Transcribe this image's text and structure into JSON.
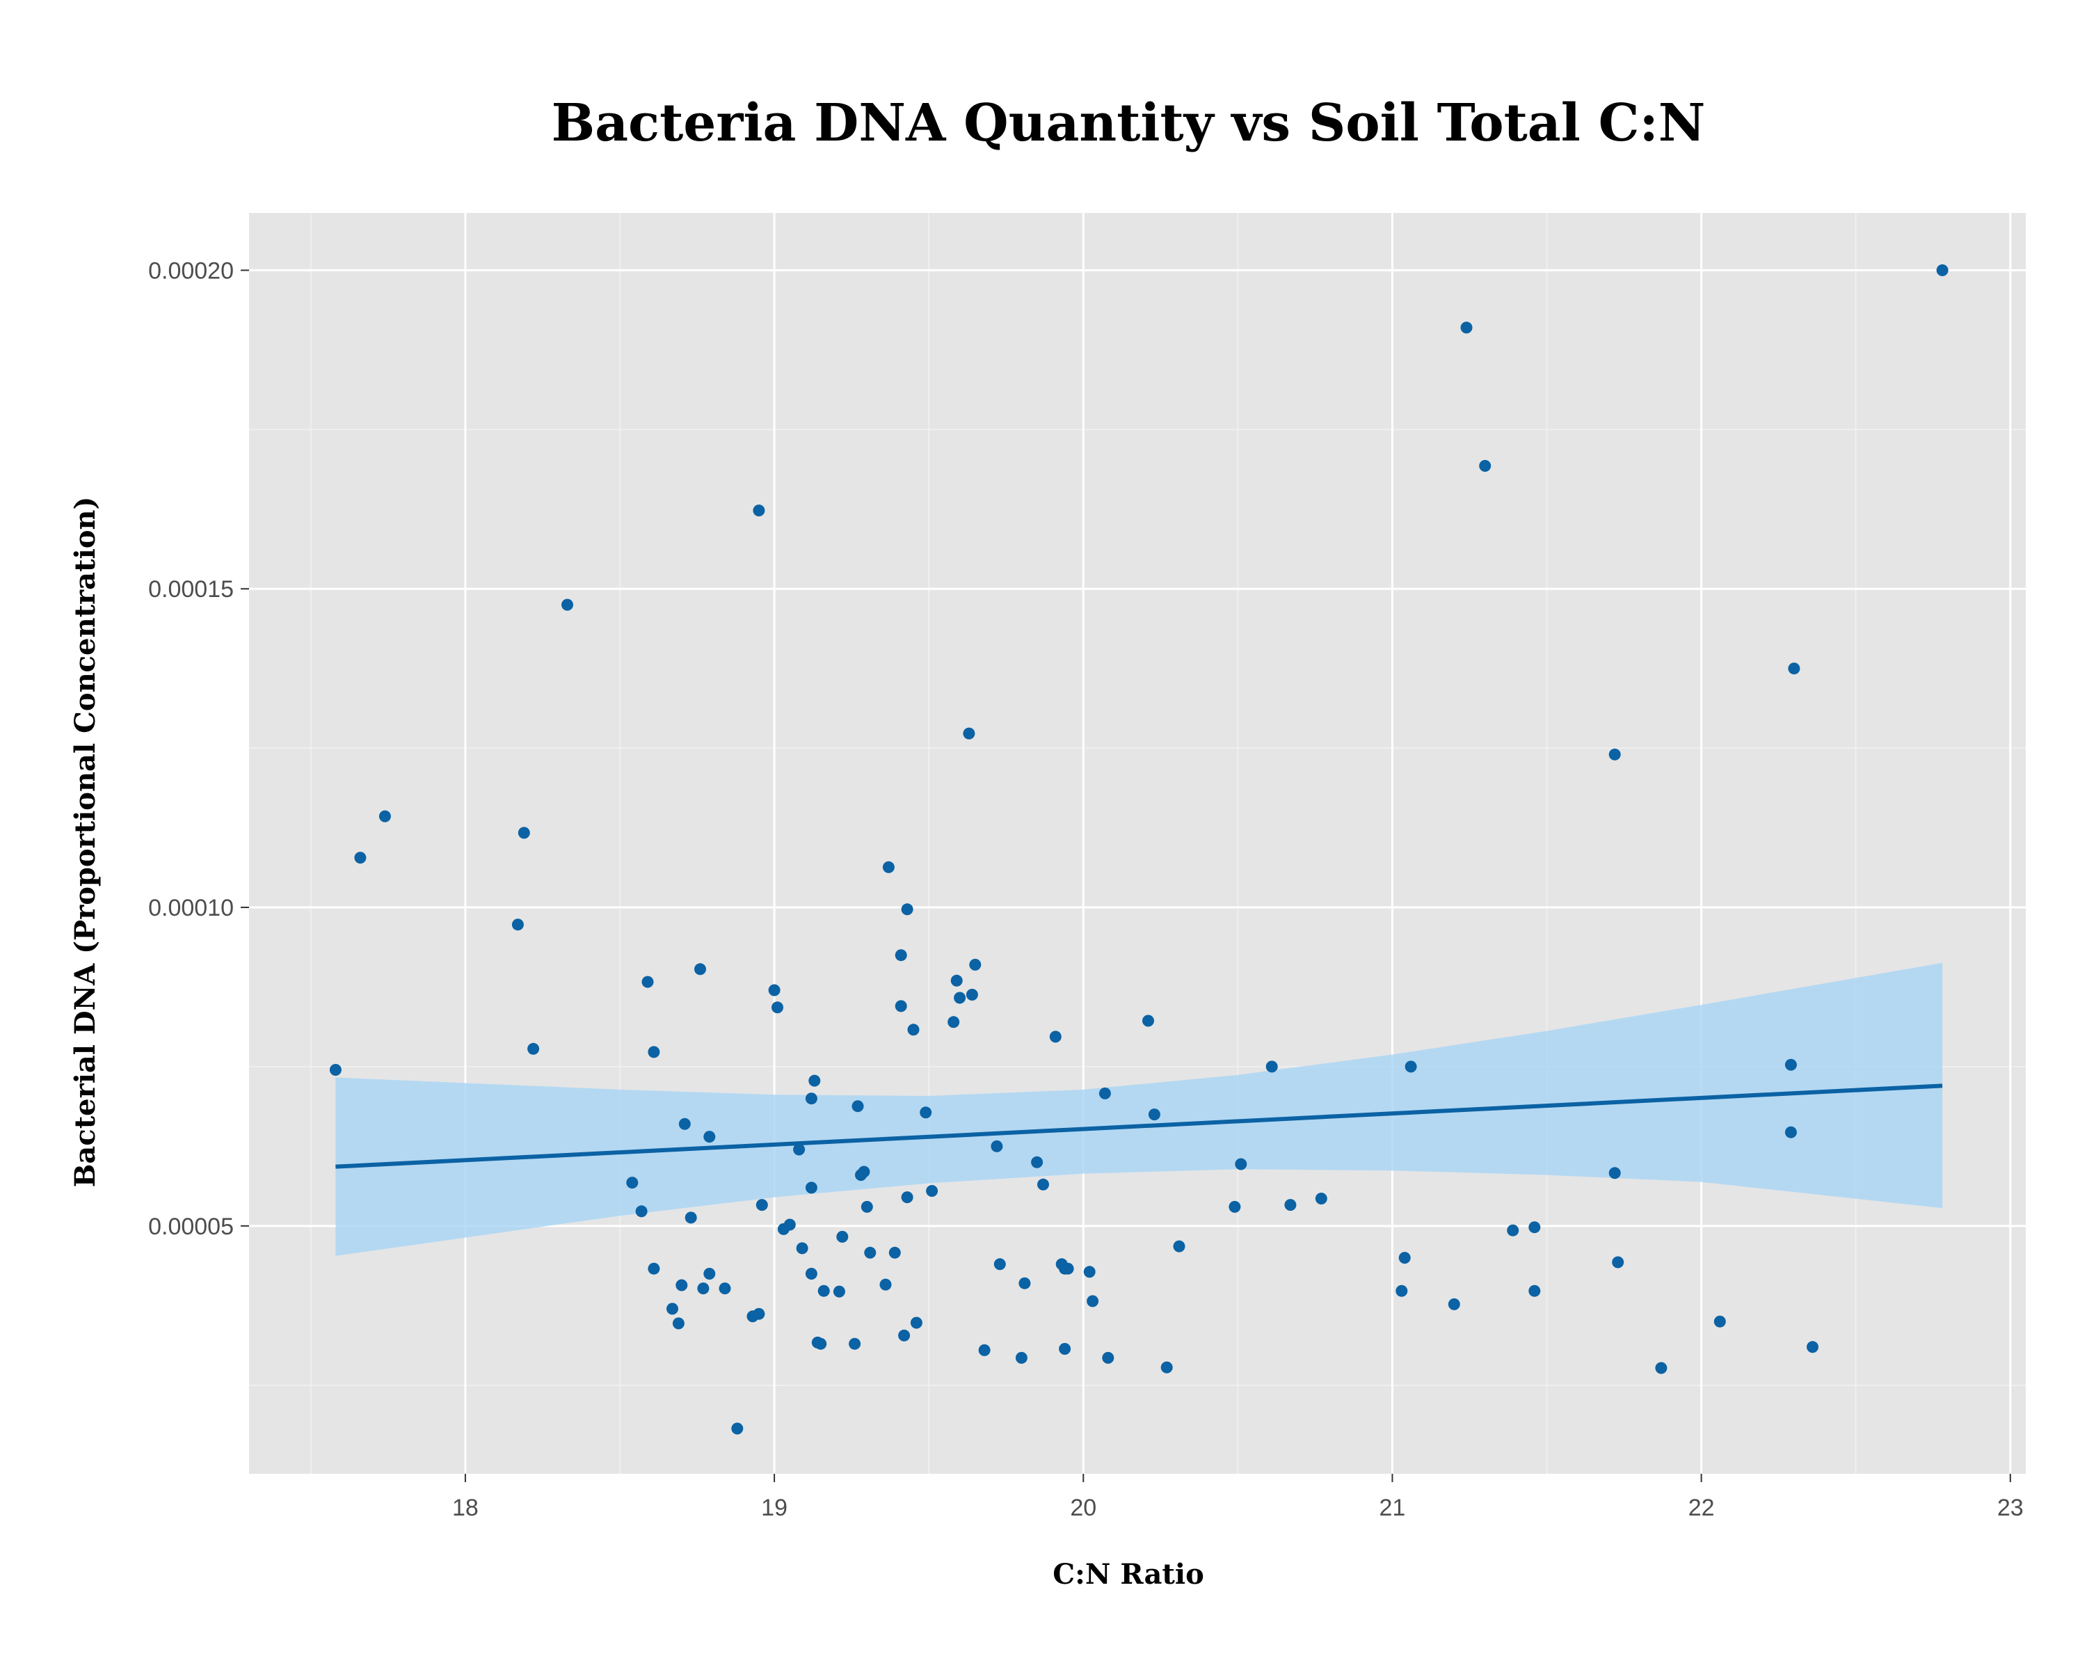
{
  "chart_data": {
    "type": "scatter",
    "title": "Bacteria DNA Quantity vs Soil Total C:N",
    "xlabel": "C:N Ratio",
    "ylabel": "Bacterial DNA (Proportional Concentration)",
    "xlim": [
      17.3,
      23.05
    ],
    "ylim": [
      1.11e-05,
      0.000209
    ],
    "x_ticks": [
      18,
      19,
      20,
      21,
      22,
      23
    ],
    "x_tick_labels": [
      "18",
      "19",
      "20",
      "21",
      "22",
      "23"
    ],
    "y_ticks": [
      5e-05,
      0.0001,
      0.00015,
      0.0002
    ],
    "y_tick_labels": [
      "0.00005",
      "0.00010",
      "0.00015",
      "0.00020"
    ],
    "grid": true,
    "colors": {
      "panel_background": "#e5e5e5",
      "points": "#0b62a4",
      "trend_line": "#0b62a4",
      "confidence_band": "#a8d4f5"
    },
    "points": [
      [
        17.58,
        7.45e-05
      ],
      [
        17.66,
        0.0001078
      ],
      [
        17.74,
        0.0001143
      ],
      [
        18.17,
        9.73e-05
      ],
      [
        18.19,
        0.0001117
      ],
      [
        18.22,
        7.78e-05
      ],
      [
        18.33,
        0.0001475
      ],
      [
        18.54,
        5.68e-05
      ],
      [
        18.57,
        5.23e-05
      ],
      [
        18.59,
        8.83e-05
      ],
      [
        18.61,
        7.73e-05
      ],
      [
        18.61,
        4.33e-05
      ],
      [
        18.67,
        3.7e-05
      ],
      [
        18.69,
        3.47e-05
      ],
      [
        18.7,
        4.07e-05
      ],
      [
        18.71,
        6.6e-05
      ],
      [
        18.73,
        5.13e-05
      ],
      [
        18.76,
        9.03e-05
      ],
      [
        18.77,
        4.02e-05
      ],
      [
        18.79,
        6.4e-05
      ],
      [
        18.79,
        4.25e-05
      ],
      [
        18.84,
        4.02e-05
      ],
      [
        18.88,
        1.82e-05
      ],
      [
        18.93,
        3.58e-05
      ],
      [
        18.95,
        3.62e-05
      ],
      [
        18.95,
        0.0001623
      ],
      [
        18.96,
        5.33e-05
      ],
      [
        19.0,
        8.7e-05
      ],
      [
        19.01,
        8.43e-05
      ],
      [
        19.03,
        4.95e-05
      ],
      [
        19.05,
        5.02e-05
      ],
      [
        19.08,
        6.2e-05
      ],
      [
        19.09,
        4.65e-05
      ],
      [
        19.12,
        7e-05
      ],
      [
        19.12,
        5.6e-05
      ],
      [
        19.12,
        4.25e-05
      ],
      [
        19.13,
        7.28e-05
      ],
      [
        19.14,
        3.17e-05
      ],
      [
        19.15,
        3.15e-05
      ],
      [
        19.16,
        3.98e-05
      ],
      [
        19.21,
        3.97e-05
      ],
      [
        19.22,
        4.83e-05
      ],
      [
        19.26,
        3.15e-05
      ],
      [
        19.27,
        6.88e-05
      ],
      [
        19.28,
        5.8e-05
      ],
      [
        19.29,
        5.85e-05
      ],
      [
        19.3,
        5.3e-05
      ],
      [
        19.31,
        4.58e-05
      ],
      [
        19.36,
        4.08e-05
      ],
      [
        19.37,
        0.0001063
      ],
      [
        19.39,
        4.58e-05
      ],
      [
        19.41,
        9.25e-05
      ],
      [
        19.41,
        8.45e-05
      ],
      [
        19.42,
        3.28e-05
      ],
      [
        19.43,
        9.97e-05
      ],
      [
        19.43,
        5.45e-05
      ],
      [
        19.45,
        8.08e-05
      ],
      [
        19.46,
        3.48e-05
      ],
      [
        19.49,
        6.78e-05
      ],
      [
        19.51,
        5.55e-05
      ],
      [
        19.58,
        8.2e-05
      ],
      [
        19.59,
        8.85e-05
      ],
      [
        19.6,
        8.58e-05
      ],
      [
        19.63,
        0.0001273
      ],
      [
        19.64,
        8.63e-05
      ],
      [
        19.65,
        9.1e-05
      ],
      [
        19.68,
        3.05e-05
      ],
      [
        19.72,
        6.25e-05
      ],
      [
        19.73,
        4.4e-05
      ],
      [
        19.8,
        2.93e-05
      ],
      [
        19.81,
        4.1e-05
      ],
      [
        19.85,
        6e-05
      ],
      [
        19.87,
        5.65e-05
      ],
      [
        19.91,
        7.97e-05
      ],
      [
        19.93,
        4.4e-05
      ],
      [
        19.94,
        4.33e-05
      ],
      [
        19.94,
        3.07e-05
      ],
      [
        19.95,
        4.33e-05
      ],
      [
        20.02,
        4.28e-05
      ],
      [
        20.03,
        3.82e-05
      ],
      [
        20.07,
        7.08e-05
      ],
      [
        20.08,
        2.93e-05
      ],
      [
        20.21,
        8.22e-05
      ],
      [
        20.23,
        6.75e-05
      ],
      [
        20.27,
        2.78e-05
      ],
      [
        20.31,
        4.68e-05
      ],
      [
        20.49,
        5.3e-05
      ],
      [
        20.51,
        5.97e-05
      ],
      [
        20.61,
        7.5e-05
      ],
      [
        20.67,
        5.33e-05
      ],
      [
        20.77,
        5.43e-05
      ],
      [
        21.03,
        3.98e-05
      ],
      [
        21.04,
        4.5e-05
      ],
      [
        21.06,
        7.5e-05
      ],
      [
        21.2,
        3.77e-05
      ],
      [
        21.24,
        0.000191
      ],
      [
        21.3,
        0.0001693
      ],
      [
        21.39,
        4.93e-05
      ],
      [
        21.46,
        4.98e-05
      ],
      [
        21.46,
        3.98e-05
      ],
      [
        21.72,
        0.000124
      ],
      [
        21.72,
        5.83e-05
      ],
      [
        21.73,
        4.43e-05
      ],
      [
        21.87,
        2.77e-05
      ],
      [
        22.06,
        3.5e-05
      ],
      [
        22.29,
        7.53e-05
      ],
      [
        22.29,
        6.47e-05
      ],
      [
        22.3,
        0.0001375
      ],
      [
        22.36,
        3.1e-05
      ],
      [
        22.78,
        0.0002
      ]
    ],
    "trend_line": {
      "x": [
        17.58,
        22.78
      ],
      "y": [
        5.93e-05,
        7.2e-05
      ]
    },
    "confidence_band": {
      "x": [
        17.58,
        18.5,
        19.0,
        19.5,
        20.0,
        20.5,
        21.0,
        21.5,
        22.0,
        22.78
      ],
      "upper": [
        7.33e-05,
        7.14e-05,
        7.06e-05,
        7.04e-05,
        7.14e-05,
        7.37e-05,
        7.69e-05,
        8.06e-05,
        8.47e-05,
        9.13e-05
      ],
      "lower": [
        4.53e-05,
        5.16e-05,
        5.45e-05,
        5.67e-05,
        5.82e-05,
        5.89e-05,
        5.87e-05,
        5.8e-05,
        5.69e-05,
        5.28e-05
      ]
    }
  }
}
